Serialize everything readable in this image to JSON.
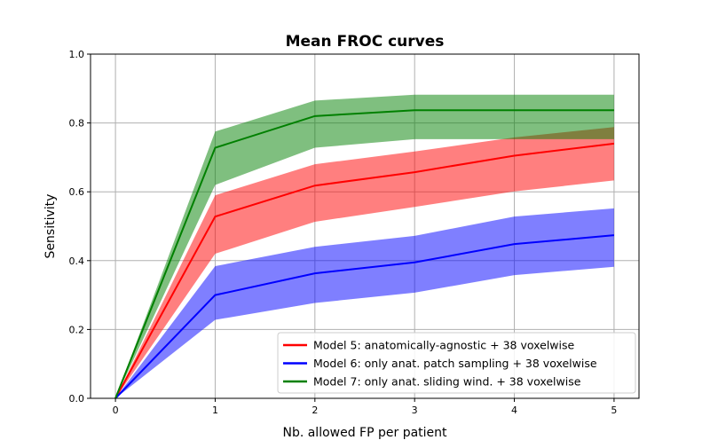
{
  "chart_data": {
    "type": "line",
    "title": "Mean FROC curves",
    "xlabel": "Nb. allowed FP per patient",
    "ylabel": "Sensitivity",
    "xlim": [
      -0.25,
      5.25
    ],
    "ylim": [
      0.0,
      1.0
    ],
    "xticks": [
      "0",
      "1",
      "2",
      "3",
      "4",
      "5"
    ],
    "yticks": [
      "0.0",
      "0.2",
      "0.4",
      "0.6",
      "0.8",
      "1.0"
    ],
    "grid": true,
    "legend_position": "lower-right",
    "x": [
      0,
      1,
      2,
      3,
      4,
      5
    ],
    "series": [
      {
        "name": "Model 5: anatomically-agnostic + 38 voxelwise",
        "color": "#ff0000",
        "values": [
          0.0,
          0.528,
          0.618,
          0.657,
          0.705,
          0.74
        ],
        "upper": [
          0.0,
          0.59,
          0.68,
          0.717,
          0.758,
          0.788
        ],
        "lower": [
          0.0,
          0.42,
          0.513,
          0.556,
          0.601,
          0.633
        ]
      },
      {
        "name": "Model 6: only anat. patch sampling + 38 voxelwise",
        "color": "#0000ff",
        "values": [
          0.0,
          0.3,
          0.363,
          0.395,
          0.448,
          0.474
        ],
        "upper": [
          0.0,
          0.384,
          0.44,
          0.472,
          0.528,
          0.552
        ],
        "lower": [
          0.0,
          0.228,
          0.277,
          0.307,
          0.358,
          0.382
        ]
      },
      {
        "name": "Model 7: only anat. sliding wind. + 38 voxelwise",
        "color": "#008000",
        "values": [
          0.0,
          0.728,
          0.82,
          0.837,
          0.837,
          0.837
        ],
        "upper": [
          0.0,
          0.775,
          0.865,
          0.882,
          0.882,
          0.882
        ],
        "lower": [
          0.0,
          0.62,
          0.728,
          0.753,
          0.753,
          0.753
        ]
      }
    ]
  }
}
